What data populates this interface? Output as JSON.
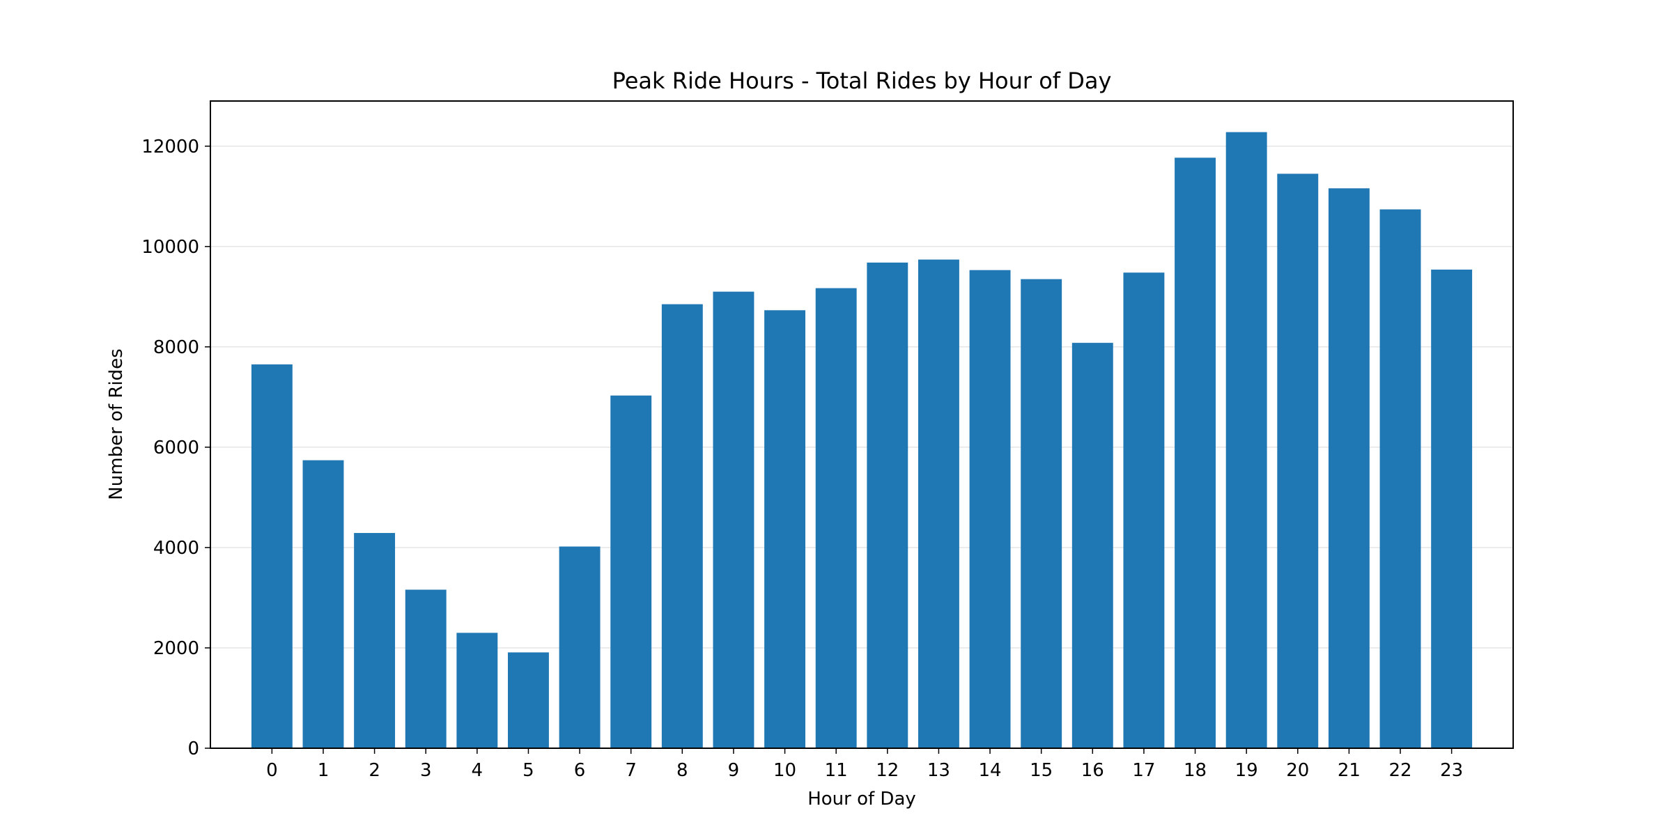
{
  "chart_data": {
    "type": "bar",
    "title": "Peak Ride Hours - Total Rides by Hour of Day",
    "xlabel": "Hour of Day",
    "ylabel": "Number of Rides",
    "categories": [
      "0",
      "1",
      "2",
      "3",
      "4",
      "5",
      "6",
      "7",
      "8",
      "9",
      "10",
      "11",
      "12",
      "13",
      "14",
      "15",
      "16",
      "17",
      "18",
      "19",
      "20",
      "21",
      "22",
      "23"
    ],
    "values": [
      7650,
      5740,
      4290,
      3160,
      2300,
      1910,
      4020,
      7030,
      8850,
      9100,
      8730,
      9170,
      9680,
      9740,
      9530,
      9350,
      8080,
      9480,
      11770,
      12280,
      11450,
      11160,
      10740,
      9540
    ],
    "ylim": [
      0,
      12900
    ],
    "yticks": [
      0,
      2000,
      4000,
      6000,
      8000,
      10000,
      12000
    ],
    "ytick_labels": [
      "0",
      "2000",
      "4000",
      "6000",
      "8000",
      "10000",
      "12000"
    ],
    "grid": "horizontal",
    "bar_color": "#1f77b4",
    "grid_color": "#e5e5e5"
  }
}
